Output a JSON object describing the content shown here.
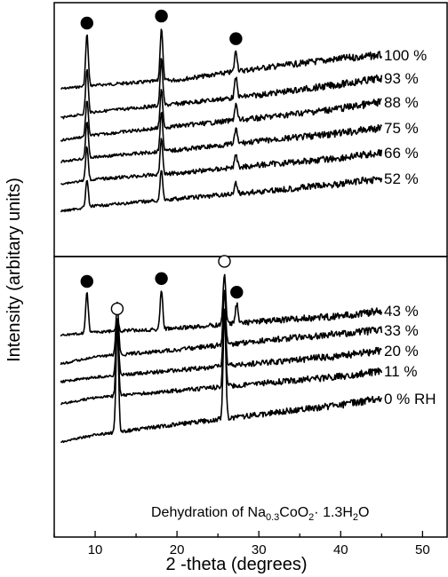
{
  "chart_data": [
    {
      "type": "line",
      "panel": "top",
      "xlim": [
        5,
        53
      ],
      "x_range": [
        5.8,
        45
      ],
      "series": [
        {
          "name": "100 %",
          "peaks": [
            {
              "x": 9.0,
              "h": 58
            },
            {
              "x": 18.1,
              "h": 60
            },
            {
              "x": 27.2,
              "h": 24
            }
          ],
          "baseline": [
            [
              5.8,
              100
            ],
            [
              10,
              96
            ],
            [
              20,
              90
            ],
            [
              30,
              77
            ],
            [
              40,
              66
            ],
            [
              45,
              62
            ]
          ]
        },
        {
          "name": "93 %",
          "peaks": [
            {
              "x": 9.0,
              "h": 50
            },
            {
              "x": 18.1,
              "h": 52
            },
            {
              "x": 27.2,
              "h": 22
            }
          ],
          "baseline": [
            [
              5.8,
              133
            ],
            [
              10,
              126
            ],
            [
              20,
              117
            ],
            [
              30,
              107
            ],
            [
              40,
              95
            ],
            [
              45,
              88
            ]
          ]
        },
        {
          "name": "88 %",
          "peaks": [
            {
              "x": 9.0,
              "h": 40
            },
            {
              "x": 18.1,
              "h": 42
            },
            {
              "x": 27.2,
              "h": 18
            }
          ],
          "baseline": [
            [
              5.8,
              158
            ],
            [
              10,
              152
            ],
            [
              20,
              142
            ],
            [
              30,
              133
            ],
            [
              40,
              122
            ],
            [
              45,
              115
            ]
          ]
        },
        {
          "name": "75 %",
          "peaks": [
            {
              "x": 9.0,
              "h": 42
            },
            {
              "x": 18.1,
              "h": 45
            },
            {
              "x": 27.2,
              "h": 16
            }
          ],
          "baseline": [
            [
              5.8,
              182
            ],
            [
              10,
              177
            ],
            [
              20,
              169
            ],
            [
              30,
              159
            ],
            [
              40,
              150
            ],
            [
              45,
              144
            ]
          ]
        },
        {
          "name": "66 %",
          "peaks": [
            {
              "x": 9.0,
              "h": 38
            },
            {
              "x": 18.1,
              "h": 40
            },
            {
              "x": 27.2,
              "h": 14
            }
          ],
          "baseline": [
            [
              5.8,
              207
            ],
            [
              10,
              202
            ],
            [
              20,
              195
            ],
            [
              30,
              186
            ],
            [
              40,
              178
            ],
            [
              45,
              172
            ]
          ]
        },
        {
          "name": "52 %",
          "peaks": [
            {
              "x": 9.0,
              "h": 30
            },
            {
              "x": 18.1,
              "h": 34
            },
            {
              "x": 27.2,
              "h": 12
            }
          ],
          "baseline": [
            [
              5.8,
              238
            ],
            [
              10,
              232
            ],
            [
              20,
              224
            ],
            [
              30,
              216
            ],
            [
              40,
              207
            ],
            [
              45,
              201
            ]
          ]
        }
      ],
      "markers": [
        {
          "x": 9.0,
          "style": "filled"
        },
        {
          "x": 18.1,
          "style": "filled"
        },
        {
          "x": 27.2,
          "style": "filled"
        }
      ]
    },
    {
      "type": "line",
      "panel": "bottom",
      "xlim": [
        5,
        53
      ],
      "x_range": [
        5.8,
        45
      ],
      "series": [
        {
          "name": "43 %",
          "peaks": [
            {
              "x": 9.0,
              "h": 45
            },
            {
              "x": 12.7,
              "h": 12
            },
            {
              "x": 18.1,
              "h": 44
            },
            {
              "x": 25.8,
              "h": 58
            },
            {
              "x": 27.3,
              "h": 22
            }
          ],
          "baseline": [
            [
              5.8,
              378
            ],
            [
              10,
              374
            ],
            [
              20,
              370
            ],
            [
              30,
              362
            ],
            [
              40,
              356
            ],
            [
              45,
              350
            ]
          ]
        },
        {
          "name": "33 %",
          "peaks": [
            {
              "x": 12.7,
              "h": 60
            },
            {
              "x": 25.8,
              "h": 60
            }
          ],
          "baseline": [
            [
              5.8,
              410
            ],
            [
              10,
              402
            ],
            [
              20,
              394
            ],
            [
              30,
              384
            ],
            [
              40,
              376
            ],
            [
              45,
              372
            ]
          ]
        },
        {
          "name": "20 %",
          "peaks": [
            {
              "x": 12.7,
              "h": 62
            },
            {
              "x": 25.8,
              "h": 64
            }
          ],
          "baseline": [
            [
              5.8,
              430
            ],
            [
              10,
              425
            ],
            [
              20,
              417
            ],
            [
              30,
              409
            ],
            [
              40,
              401
            ],
            [
              45,
              395
            ]
          ]
        },
        {
          "name": "11 %",
          "peaks": [
            {
              "x": 12.7,
              "h": 78
            },
            {
              "x": 25.8,
              "h": 80
            }
          ],
          "baseline": [
            [
              5.8,
              455
            ],
            [
              10,
              448
            ],
            [
              20,
              440
            ],
            [
              30,
              432
            ],
            [
              40,
              424
            ],
            [
              45,
              418
            ]
          ]
        },
        {
          "name": "0 % RH",
          "peaks": [
            {
              "x": 12.7,
              "h": 120
            },
            {
              "x": 25.8,
              "h": 122
            }
          ],
          "baseline": [
            [
              5.8,
              498
            ],
            [
              10,
              490
            ],
            [
              20,
              478
            ],
            [
              30,
              467
            ],
            [
              40,
              456
            ],
            [
              45,
              449
            ]
          ]
        }
      ],
      "markers": [
        {
          "x": 9.0,
          "style": "filled"
        },
        {
          "x": 12.7,
          "style": "open"
        },
        {
          "x": 18.1,
          "style": "filled"
        },
        {
          "x": 25.8,
          "style": "open"
        },
        {
          "x": 27.3,
          "style": "filled"
        }
      ],
      "annotation": {
        "prefix": "Dehydration of Na",
        "sub1": "0.3",
        "mid": "CoO",
        "sub2": "2",
        "suffix": "· 1.3H",
        "sub3": "2",
        "end": "O"
      }
    }
  ],
  "axes": {
    "xlabel": "2 -theta (degrees)",
    "ylabel": "Intensity (arbitary units)",
    "xticks": [
      10,
      20,
      30,
      40,
      50
    ]
  }
}
